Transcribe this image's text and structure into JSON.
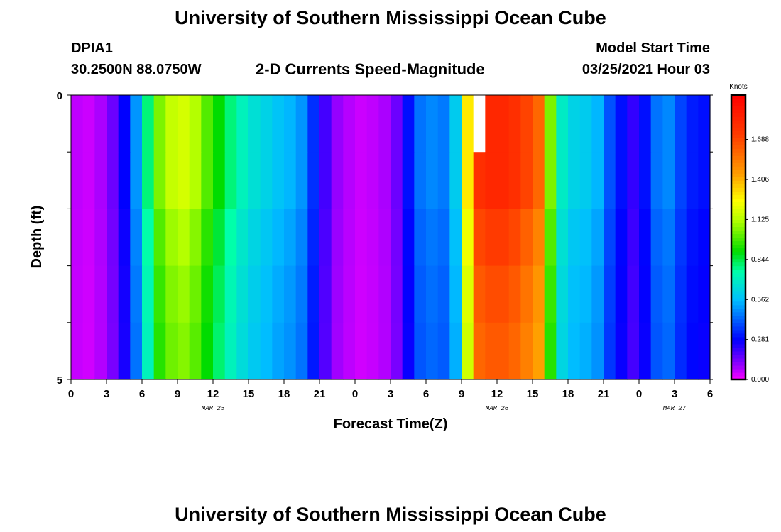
{
  "header": {
    "title": "University of Southern Mississippi Ocean Cube",
    "station_id": "DPIA1",
    "coordinates": "30.2500N 88.0750W",
    "plot_title": "2-D Currents Speed-Magnitude",
    "model_start_label": "Model Start Time",
    "model_start_value": "03/25/2021 Hour 03"
  },
  "footer": {
    "title": "University of Southern Mississippi Ocean Cube"
  },
  "chart_data": {
    "type": "heatmap",
    "title": "2-D Currents Speed-Magnitude",
    "xlabel": "Forecast Time(Z)",
    "ylabel": "Depth (ft)",
    "x_hours_range": [
      0,
      54
    ],
    "x_tick_labels": [
      "0",
      "3",
      "6",
      "9",
      "12",
      "15",
      "18",
      "21",
      "0",
      "3",
      "6",
      "9",
      "12",
      "15",
      "18",
      "21",
      "0",
      "3",
      "6"
    ],
    "date_labels": [
      {
        "label": "MAR 25",
        "hour": 12
      },
      {
        "label": "MAR 26",
        "hour": 36
      },
      {
        "label": "MAR 27",
        "hour": 51
      }
    ],
    "y_range": [
      0,
      5
    ],
    "y_tick_labels": [
      "0",
      "5"
    ],
    "depth_rows": 5,
    "colorbar": {
      "unit": "Knots",
      "range": [
        0,
        2.0
      ],
      "tick_labels": [
        "0.000",
        "0.281",
        "0.562",
        "0.844",
        "1.125",
        "1.406",
        "1.688"
      ],
      "tick_values": [
        0.0,
        0.281,
        0.562,
        0.844,
        1.125,
        1.406,
        1.688
      ]
    },
    "missing_cell": {
      "hour": 34,
      "depth_row": 0
    },
    "speed_profile_knots_by_hour": [
      0.06,
      0.05,
      0.08,
      0.15,
      0.28,
      0.5,
      0.8,
      1.05,
      1.15,
      1.18,
      1.12,
      1.0,
      0.9,
      0.8,
      0.72,
      0.66,
      0.62,
      0.58,
      0.55,
      0.5,
      0.35,
      0.2,
      0.1,
      0.07,
      0.05,
      0.06,
      0.08,
      0.15,
      0.3,
      0.45,
      0.48,
      0.46,
      0.6,
      1.3,
      1.78,
      1.82,
      1.82,
      1.78,
      1.7,
      1.6,
      1.05,
      0.7,
      0.62,
      0.6,
      0.55,
      0.4,
      0.3,
      0.22,
      0.3,
      0.45,
      0.48,
      0.38,
      0.32,
      0.3
    ],
    "depth_factors": [
      1.0,
      1.0,
      0.95,
      0.92,
      0.9
    ]
  }
}
